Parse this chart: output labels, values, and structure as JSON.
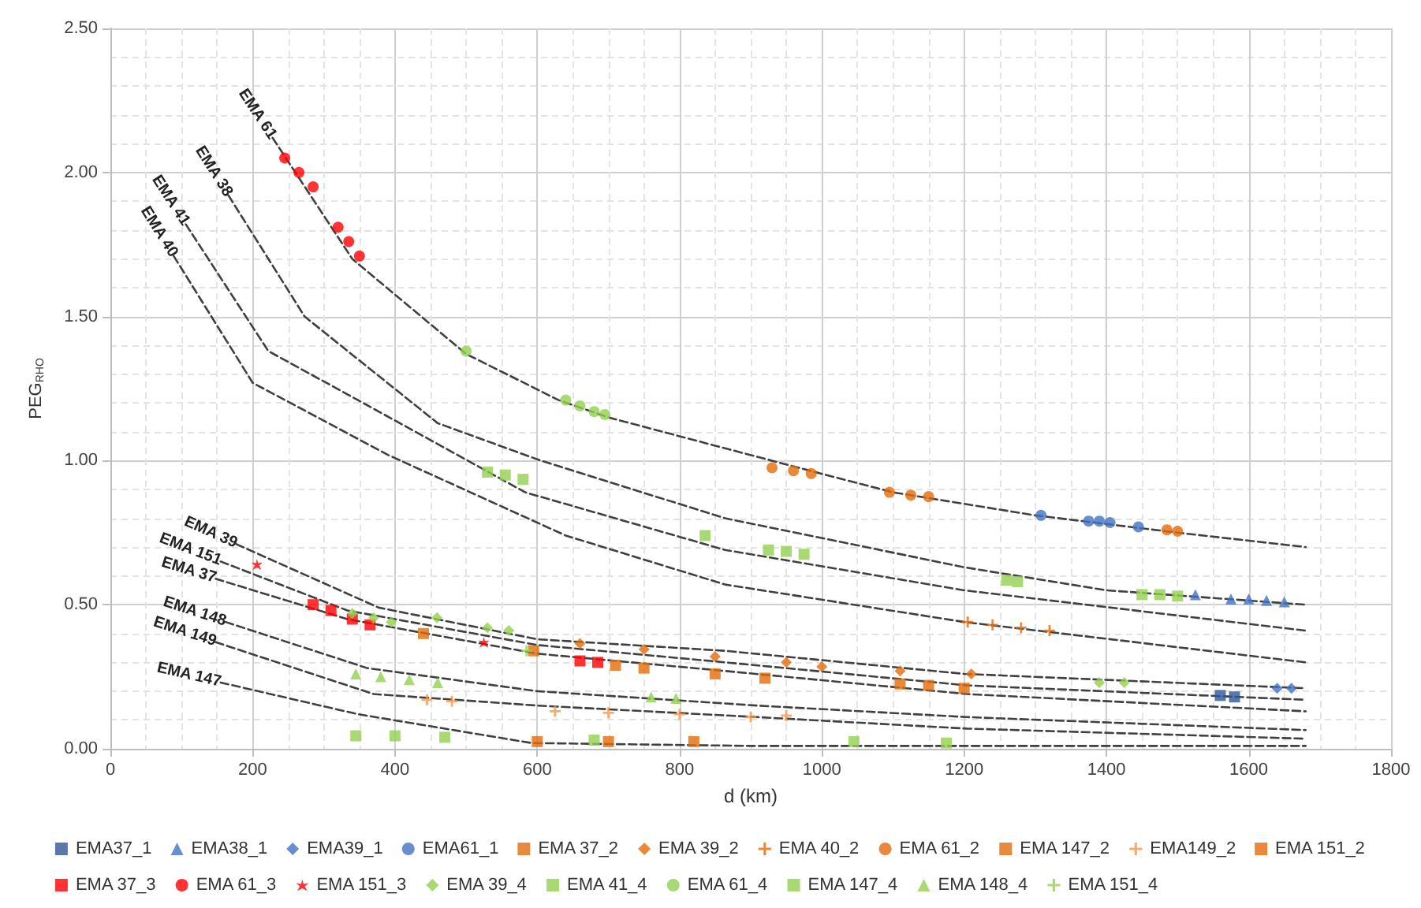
{
  "chart_data": {
    "type": "scatter",
    "xlabel": "d (km)",
    "ylabel": "PEG$_{RHO}$",
    "xlim": [
      0,
      1800
    ],
    "xticks": [
      0,
      200,
      400,
      600,
      800,
      1000,
      1200,
      1400,
      1600,
      1800
    ],
    "ylim": [
      0,
      2.5
    ],
    "yticks": [
      {
        "value": 0,
        "label": "0.00"
      },
      {
        "value": 0.5,
        "label": "0.50"
      },
      {
        "value": 1,
        "label": "1.00"
      },
      {
        "value": 1.5,
        "label": "1.50"
      },
      {
        "value": 2,
        "label": "2.00"
      },
      {
        "value": 2.5,
        "label": "2.50"
      }
    ],
    "grid": true,
    "legend": "bottom",
    "series": [
      {
        "name": "EMA 61",
        "type": "line",
        "line_style": "dashed",
        "marker": "none",
        "color": "#404040",
        "x": [
          228,
          340,
          500,
          630,
          700,
          960,
          1100,
          1300,
          1500,
          1680
        ],
        "values": [
          2.12,
          1.7,
          1.37,
          1.21,
          1.15,
          0.98,
          0.89,
          0.81,
          0.75,
          0.7
        ]
      },
      {
        "name": "EMA 38",
        "type": "line",
        "line_style": "dashed",
        "marker": "none",
        "color": "#404040",
        "x": [
          166,
          273,
          460,
          605,
          864,
          1200,
          1400,
          1680
        ],
        "values": [
          1.92,
          1.5,
          1.13,
          1.0,
          0.8,
          0.63,
          0.55,
          0.5
        ]
      },
      {
        "name": "EMA 41",
        "type": "line",
        "line_style": "dashed",
        "marker": "none",
        "color": "#404040",
        "x": [
          106,
          222,
          348,
          583,
          864,
          1200,
          1680
        ],
        "values": [
          1.82,
          1.38,
          1.21,
          0.89,
          0.69,
          0.55,
          0.41
        ]
      },
      {
        "name": "EMA 40",
        "type": "line",
        "line_style": "dashed",
        "marker": "none",
        "color": "#404040",
        "x": [
          89,
          200,
          390,
          640,
          864,
          1200,
          1680
        ],
        "values": [
          1.71,
          1.27,
          1.02,
          0.74,
          0.57,
          0.44,
          0.3
        ]
      },
      {
        "name": "EMA 39",
        "type": "line",
        "line_style": "dashed",
        "marker": "none",
        "color": "#404040",
        "x": [
          177,
          377,
          600,
          864,
          1200,
          1680
        ],
        "values": [
          0.71,
          0.49,
          0.38,
          0.34,
          0.26,
          0.21
        ]
      },
      {
        "name": "EMA 151",
        "type": "line",
        "line_style": "dashed",
        "marker": "none",
        "color": "#404040",
        "x": [
          155,
          333,
          600,
          864,
          1204,
          1680
        ],
        "values": [
          0.65,
          0.48,
          0.36,
          0.3,
          0.22,
          0.17
        ]
      },
      {
        "name": "EMA 37",
        "type": "line",
        "line_style": "dashed",
        "marker": "none",
        "color": "#404040",
        "x": [
          148,
          333,
          600,
          864,
          1204,
          1680
        ],
        "values": [
          0.59,
          0.45,
          0.33,
          0.27,
          0.19,
          0.13
        ]
      },
      {
        "name": "EMA 148",
        "type": "line",
        "line_style": "dashed",
        "marker": "none",
        "color": "#404040",
        "x": [
          162,
          361,
          600,
          909,
          1204,
          1680
        ],
        "values": [
          0.44,
          0.28,
          0.2,
          0.15,
          0.11,
          0.065
        ]
      },
      {
        "name": "EMA 149",
        "type": "line",
        "line_style": "dashed",
        "marker": "none",
        "color": "#404040",
        "x": [
          148,
          370,
          600,
          909,
          1204,
          1680
        ],
        "values": [
          0.37,
          0.19,
          0.15,
          0.11,
          0.07,
          0.035
        ]
      },
      {
        "name": "EMA 147",
        "type": "line",
        "line_style": "dashed",
        "marker": "none",
        "color": "#404040",
        "x": [
          155,
          348,
          592,
          900,
          1680
        ],
        "values": [
          0.23,
          0.12,
          0.02,
          0.01,
          0.01
        ]
      },
      {
        "name": "EMA37_1",
        "marker": "square",
        "color": "#2f5597",
        "x": [
          1560,
          1580
        ],
        "values": [
          0.185,
          0.18
        ]
      },
      {
        "name": "EMA38_1",
        "marker": "triangle",
        "color": "#4472c4",
        "x": [
          1525,
          1575,
          1600,
          1625,
          1650
        ],
        "values": [
          0.535,
          0.52,
          0.52,
          0.515,
          0.51
        ]
      },
      {
        "name": "EMA39_1",
        "marker": "diamond",
        "color": "#4472c4",
        "x": [
          1640,
          1660
        ],
        "values": [
          0.21,
          0.21
        ]
      },
      {
        "name": "EMA61_1",
        "marker": "circle",
        "color": "#4472c4",
        "x": [
          1308,
          1375,
          1390,
          1405,
          1445
        ],
        "values": [
          0.81,
          0.79,
          0.79,
          0.785,
          0.77
        ]
      },
      {
        "name": "EMA 37_2",
        "marker": "square",
        "color": "#e46c0a",
        "x": [
          710,
          750,
          850,
          920,
          1110,
          1150,
          1200
        ],
        "values": [
          0.29,
          0.28,
          0.26,
          0.245,
          0.225,
          0.22,
          0.21
        ]
      },
      {
        "name": "EMA 39_2",
        "marker": "diamond",
        "color": "#e46c0a",
        "x": [
          660,
          750,
          850,
          950,
          1000,
          1110,
          1210
        ],
        "values": [
          0.365,
          0.345,
          0.32,
          0.3,
          0.285,
          0.27,
          0.26
        ]
      },
      {
        "name": "EMA 40_2",
        "marker": "cross",
        "color": "#e46c0a",
        "x": [
          1205,
          1240,
          1280,
          1320
        ],
        "values": [
          0.44,
          0.43,
          0.42,
          0.41
        ]
      },
      {
        "name": "EMA 61_2",
        "marker": "circle",
        "color": "#e46c0a",
        "x": [
          930,
          960,
          985,
          1095,
          1125,
          1150,
          1485,
          1500
        ],
        "values": [
          0.975,
          0.965,
          0.955,
          0.89,
          0.88,
          0.875,
          0.76,
          0.755
        ]
      },
      {
        "name": "EMA 147_2",
        "marker": "square",
        "color": "#e46c0a",
        "x": [
          600,
          700,
          820
        ],
        "values": [
          0.025,
          0.025,
          0.025
        ]
      },
      {
        "name": "EMA149_2",
        "marker": "cross",
        "color": "#f79646",
        "x": [
          445,
          480,
          625,
          700,
          800,
          900,
          950
        ],
        "values": [
          0.17,
          0.165,
          0.13,
          0.125,
          0.12,
          0.11,
          0.115
        ]
      },
      {
        "name": "EMA 151_2",
        "marker": "square",
        "color": "#e46c0a",
        "x": [
          440,
          595
        ],
        "values": [
          0.4,
          0.34
        ]
      },
      {
        "name": "EMA 37_3",
        "marker": "square",
        "color": "#ff0000",
        "x": [
          285,
          310,
          340,
          365,
          660,
          685
        ],
        "values": [
          0.5,
          0.48,
          0.45,
          0.43,
          0.305,
          0.3
        ]
      },
      {
        "name": "EMA 61_3",
        "marker": "circle",
        "color": "#ff0000",
        "x": [
          245,
          265,
          285,
          320,
          335,
          350
        ],
        "values": [
          2.05,
          2.0,
          1.95,
          1.81,
          1.76,
          1.71
        ]
      },
      {
        "name": "EMA 151_3",
        "marker": "star",
        "color": "#ff0000",
        "x": [
          206,
          525
        ],
        "values": [
          0.64,
          0.37
        ]
      },
      {
        "name": "EMA 39_4",
        "marker": "diamond",
        "color": "#92d050",
        "x": [
          340,
          370,
          395,
          459,
          530,
          560,
          1390,
          1425
        ],
        "values": [
          0.47,
          0.455,
          0.44,
          0.455,
          0.42,
          0.41,
          0.23,
          0.23
        ]
      },
      {
        "name": "EMA 41_4",
        "marker": "square",
        "color": "#92d050",
        "x": [
          530,
          555,
          580,
          836,
          925,
          950,
          975,
          1260,
          1275,
          1450,
          1475,
          1500
        ],
        "values": [
          0.96,
          0.95,
          0.935,
          0.74,
          0.69,
          0.685,
          0.675,
          0.585,
          0.58,
          0.535,
          0.535,
          0.53
        ]
      },
      {
        "name": "EMA 61_4",
        "marker": "circle",
        "color": "#92d050",
        "x": [
          500,
          640,
          660,
          680,
          695
        ],
        "values": [
          1.38,
          1.21,
          1.19,
          1.17,
          1.16
        ]
      },
      {
        "name": "EMA 147_4",
        "marker": "square",
        "color": "#92d050",
        "x": [
          345,
          400,
          470,
          680,
          1045,
          1175
        ],
        "values": [
          0.045,
          0.045,
          0.04,
          0.03,
          0.025,
          0.02
        ]
      },
      {
        "name": "EMA 148_4",
        "marker": "triangle",
        "color": "#92d050",
        "x": [
          345,
          380,
          420,
          460,
          760,
          795
        ],
        "values": [
          0.26,
          0.25,
          0.24,
          0.23,
          0.18,
          0.175
        ]
      },
      {
        "name": "EMA 151_4",
        "marker": "cross",
        "color": "#92d050",
        "x": [
          585
        ],
        "values": [
          0.34
        ]
      }
    ]
  }
}
